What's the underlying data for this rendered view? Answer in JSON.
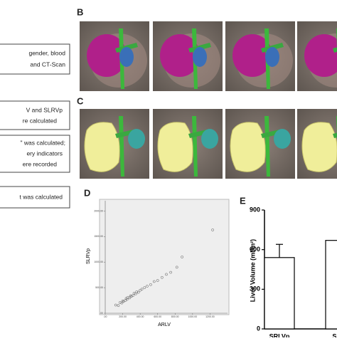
{
  "flowchart": {
    "steps": [
      [
        "gender, blood",
        "and CT-Scan"
      ],
      [
        "V and SLRVp",
        "re calculated"
      ],
      [
        "\" was calculated;",
        "ery indicators",
        "ere recorded"
      ],
      [
        "t was calculated"
      ]
    ]
  },
  "panels": {
    "b": "B",
    "c": "C",
    "d": "D",
    "e": "E"
  },
  "panel_d": {
    "type": "scatter",
    "x_label": "ARLV",
    "y_label": "SLRVp",
    "x": [
      120,
      150,
      170,
      190,
      200,
      210,
      230,
      240,
      250,
      260,
      280,
      290,
      300,
      320,
      330,
      350,
      360,
      380,
      400,
      420,
      450,
      480,
      520,
      560,
      600,
      650,
      700,
      750,
      820,
      880,
      1230
    ],
    "y": [
      160,
      150,
      210,
      200,
      240,
      230,
      250,
      290,
      270,
      310,
      300,
      340,
      330,
      350,
      390,
      380,
      420,
      410,
      450,
      470,
      500,
      530,
      560,
      620,
      640,
      700,
      760,
      800,
      900,
      1100,
      1630
    ],
    "xlim": [
      0,
      1400
    ],
    "ylim": [
      0,
      2200
    ],
    "xticks": [
      {
        "value": 0,
        "label": ".00"
      },
      {
        "value": 200,
        "label": "200.00"
      },
      {
        "value": 400,
        "label": "400.00"
      },
      {
        "value": 600,
        "label": "600.00"
      },
      {
        "value": 800,
        "label": "800.00"
      },
      {
        "value": 1000,
        "label": "1000.00"
      },
      {
        "value": 1200,
        "label": "1200.00"
      }
    ],
    "yticks": [
      {
        "value": 0,
        "label": ".00"
      },
      {
        "value": 500,
        "label": "500.00"
      },
      {
        "value": 1000,
        "label": "1000.00"
      },
      {
        "value": 1500,
        "label": "1500.00"
      },
      {
        "value": 2000,
        "label": "2000.00"
      }
    ]
  },
  "panel_e": {
    "type": "bar",
    "y_label": "Liver Volume (ml/m²)",
    "categories": [
      "SRLVp",
      "SRLV"
    ],
    "values": [
      540,
      670
    ],
    "errors": [
      100,
      null
    ],
    "color": "#ffffff",
    "ylim": [
      0,
      900
    ],
    "yticks": [
      0,
      300,
      600,
      900
    ]
  }
}
